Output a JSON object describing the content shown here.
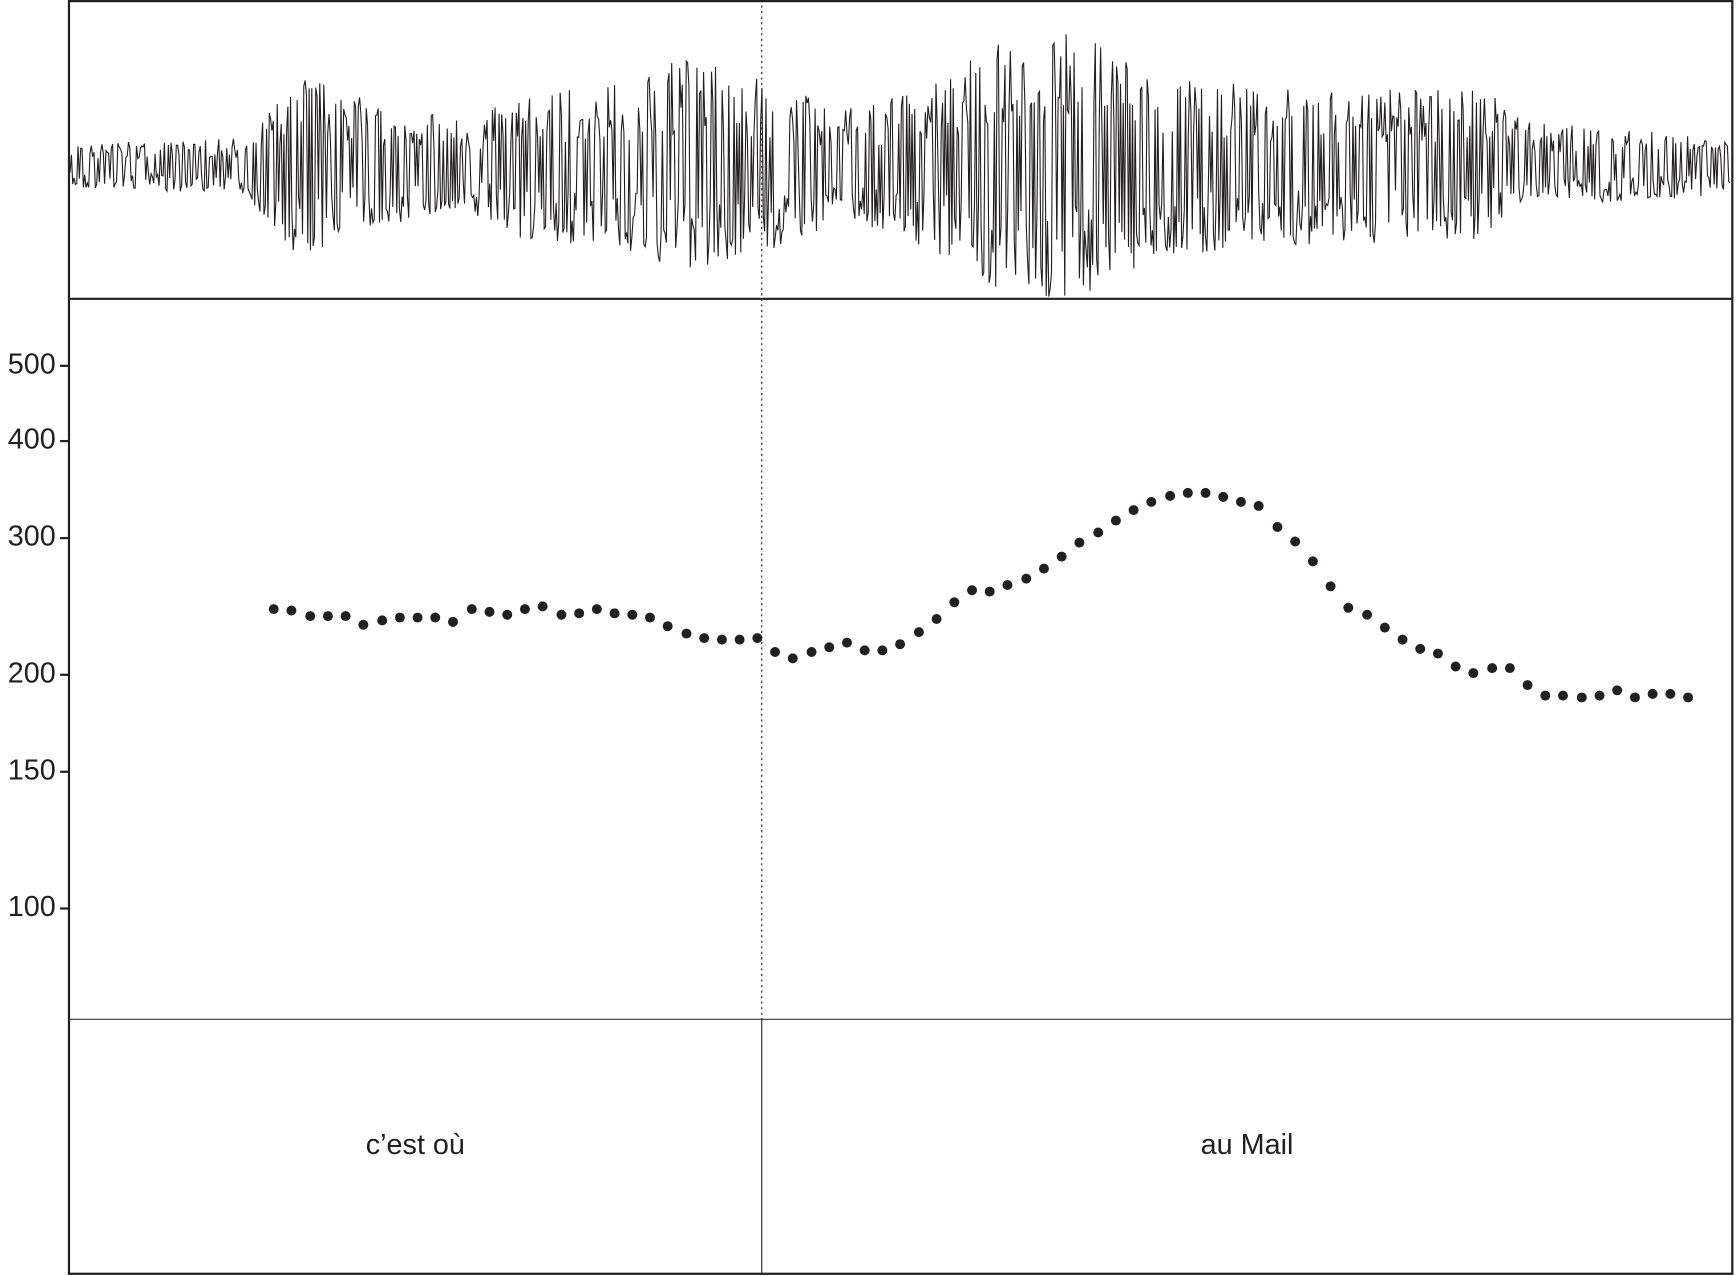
{
  "chart_data": {
    "type": "scatter",
    "log_y": true,
    "color": "#231f20",
    "xlim": [
      0,
      1.503
    ],
    "ylim": [
      72,
      610
    ],
    "yticks": [
      100,
      150,
      200,
      300,
      400,
      500
    ],
    "x": [
      0.185,
      0.201,
      0.218,
      0.234,
      0.25,
      0.266,
      0.283,
      0.299,
      0.315,
      0.331,
      0.347,
      0.364,
      0.38,
      0.396,
      0.412,
      0.428,
      0.445,
      0.461,
      0.477,
      0.493,
      0.509,
      0.525,
      0.541,
      0.558,
      0.574,
      0.59,
      0.606,
      0.622,
      0.638,
      0.654,
      0.671,
      0.687,
      0.703,
      0.719,
      0.735,
      0.751,
      0.768,
      0.784,
      0.8,
      0.816,
      0.832,
      0.848,
      0.865,
      0.881,
      0.897,
      0.913,
      0.93,
      0.946,
      0.962,
      0.978,
      0.995,
      1.011,
      1.027,
      1.043,
      1.059,
      1.075,
      1.092,
      1.108,
      1.124,
      1.14,
      1.156,
      1.173,
      1.189,
      1.205,
      1.221,
      1.237,
      1.253,
      1.269,
      1.286,
      1.302,
      1.318,
      1.334,
      1.35,
      1.367,
      1.383,
      1.399,
      1.415,
      1.431,
      1.447,
      1.463
    ],
    "values": [
      243,
      242,
      238,
      238,
      238,
      232,
      235,
      237,
      237,
      237,
      234,
      243,
      241,
      239,
      243,
      245,
      239,
      240,
      243,
      240,
      239,
      237,
      231,
      226,
      223,
      222,
      222,
      223,
      214,
      210,
      214,
      217,
      220,
      215,
      215,
      219,
      227,
      236,
      248,
      257,
      256,
      261,
      266,
      274,
      284,
      296,
      305,
      316,
      326,
      334,
      340,
      343,
      343,
      339,
      334,
      330,
      310,
      297,
      280,
      260,
      244,
      239,
      230,
      222,
      216,
      213,
      205,
      201,
      204,
      204,
      194,
      188,
      188,
      187,
      188,
      191,
      187,
      189,
      189,
      187
    ],
    "intervals": [
      {
        "text": "c’est où",
        "start": 0,
        "end": 0.626
      },
      {
        "text": "au Mail",
        "start": 0.626,
        "end": 1.503
      }
    ]
  }
}
